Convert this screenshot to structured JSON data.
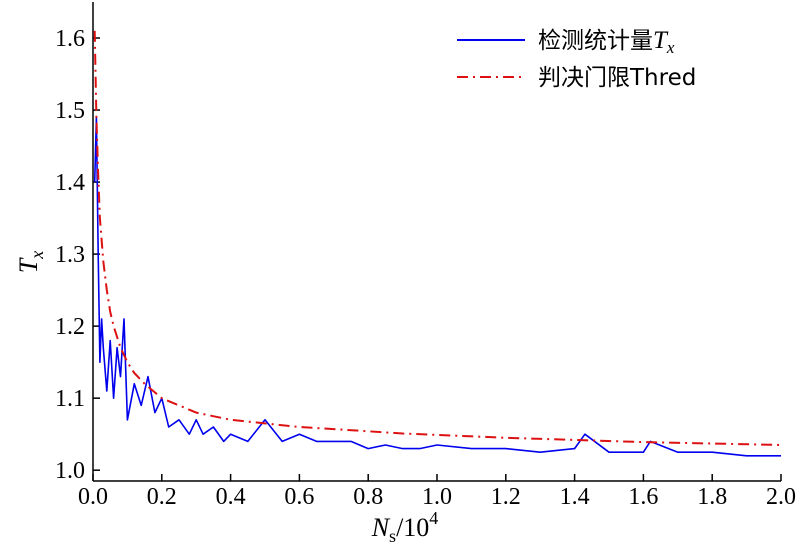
{
  "chart_data": {
    "type": "line",
    "xlabel": {
      "main": "N",
      "sub": "s",
      "rest": "/10",
      "sup": "4"
    },
    "ylabel": {
      "main": "T",
      "sub": "x"
    },
    "xlim": [
      0.0,
      2.0
    ],
    "ylim": [
      0.985,
      1.65
    ],
    "x_ticks": [
      0.0,
      0.2,
      0.4,
      0.6,
      0.8,
      1.0,
      1.2,
      1.4,
      1.6,
      1.8,
      2.0
    ],
    "x_tick_labels": [
      "0.0",
      "0.2",
      "0.4",
      "0.6",
      "0.8",
      "1.0",
      "1.2",
      "1.4",
      "1.6",
      "1.8",
      "2.0"
    ],
    "y_ticks": [
      1.0,
      1.1,
      1.2,
      1.3,
      1.4,
      1.5,
      1.6
    ],
    "y_tick_labels": [
      "1.0",
      "1.1",
      "1.2",
      "1.3",
      "1.4",
      "1.5",
      "1.6"
    ],
    "grid": false,
    "legend_position": "top-right",
    "series": [
      {
        "name": "检测统计量",
        "name_italic": "T",
        "name_sub": "x",
        "color": "#0000ee",
        "style": "solid",
        "x": [
          0.005,
          0.01,
          0.015,
          0.02,
          0.025,
          0.03,
          0.04,
          0.05,
          0.06,
          0.07,
          0.08,
          0.09,
          0.1,
          0.12,
          0.14,
          0.16,
          0.18,
          0.2,
          0.22,
          0.25,
          0.28,
          0.3,
          0.32,
          0.35,
          0.38,
          0.4,
          0.45,
          0.5,
          0.55,
          0.6,
          0.65,
          0.7,
          0.75,
          0.8,
          0.85,
          0.9,
          0.95,
          1.0,
          1.1,
          1.2,
          1.3,
          1.4,
          1.43,
          1.5,
          1.6,
          1.62,
          1.7,
          1.8,
          1.9,
          2.0
        ],
        "values": [
          1.4,
          1.49,
          1.3,
          1.15,
          1.21,
          1.17,
          1.11,
          1.18,
          1.1,
          1.17,
          1.13,
          1.21,
          1.07,
          1.12,
          1.09,
          1.13,
          1.08,
          1.1,
          1.06,
          1.07,
          1.05,
          1.07,
          1.05,
          1.06,
          1.04,
          1.05,
          1.04,
          1.07,
          1.04,
          1.05,
          1.04,
          1.04,
          1.04,
          1.03,
          1.035,
          1.03,
          1.03,
          1.035,
          1.03,
          1.03,
          1.025,
          1.03,
          1.05,
          1.025,
          1.025,
          1.04,
          1.025,
          1.025,
          1.02,
          1.02
        ]
      },
      {
        "name": "判决门限Thred",
        "color": "#dd1111",
        "style": "dashdot",
        "x": [
          0.005,
          0.01,
          0.015,
          0.02,
          0.03,
          0.04,
          0.05,
          0.06,
          0.08,
          0.1,
          0.12,
          0.15,
          0.2,
          0.25,
          0.3,
          0.4,
          0.5,
          0.6,
          0.7,
          0.8,
          0.9,
          1.0,
          1.2,
          1.4,
          1.6,
          1.8,
          2.0
        ],
        "values": [
          1.61,
          1.49,
          1.41,
          1.35,
          1.29,
          1.25,
          1.22,
          1.2,
          1.17,
          1.15,
          1.135,
          1.12,
          1.1,
          1.09,
          1.08,
          1.07,
          1.065,
          1.06,
          1.057,
          1.054,
          1.051,
          1.049,
          1.045,
          1.042,
          1.039,
          1.037,
          1.035
        ]
      }
    ]
  }
}
